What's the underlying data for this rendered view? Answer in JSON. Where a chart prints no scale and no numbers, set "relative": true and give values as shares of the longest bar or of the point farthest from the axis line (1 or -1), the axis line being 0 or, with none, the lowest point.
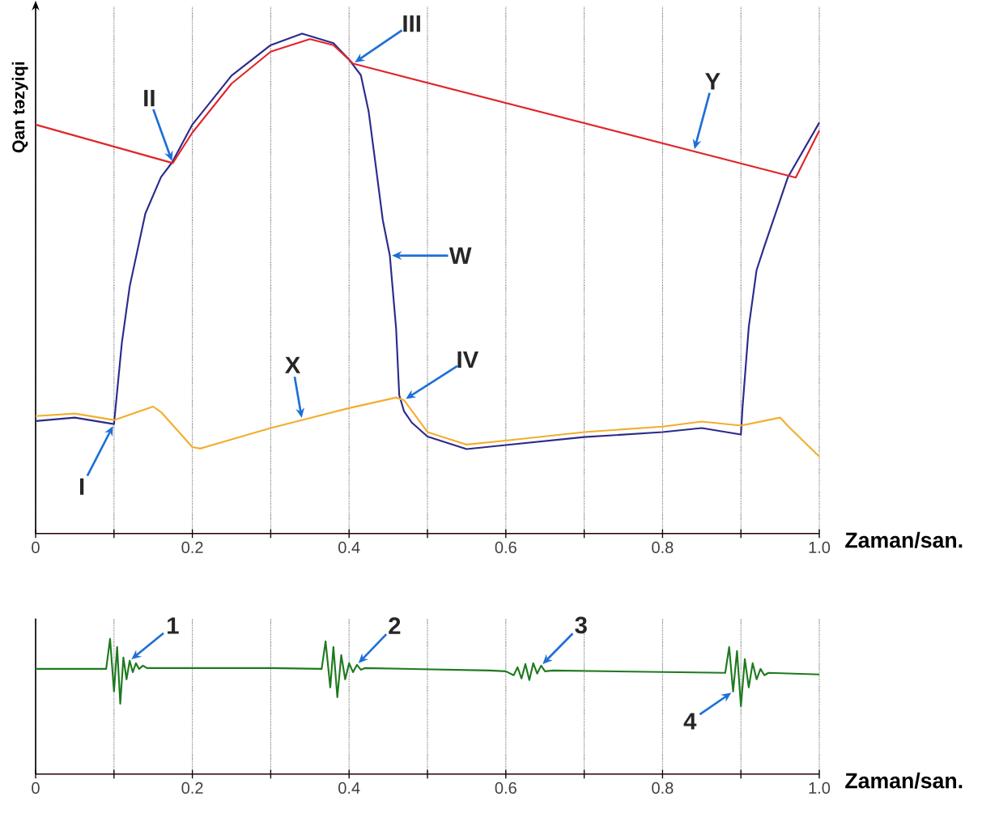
{
  "chart_data": [
    {
      "type": "line",
      "relative": true,
      "xlabel": "Zaman/san.",
      "ylabel": "Qan təzyiqi",
      "xlim": [
        0,
        1
      ],
      "xticks": [
        0,
        {
          "value": 0.1,
          "label": null
        },
        0.2,
        {
          "value": 0.3,
          "label": null
        },
        0.4,
        {
          "value": 0.5,
          "label": null
        },
        0.6,
        {
          "value": 0.7,
          "label": null
        },
        0.8,
        {
          "value": 0.9,
          "label": null
        },
        {
          "value": 1,
          "label": "1.0"
        }
      ],
      "grid": "x",
      "series": [
        {
          "name": "W",
          "color": "#2b2a8c",
          "x": [
            0,
            0.05,
            0.1,
            0.105,
            0.11,
            0.12,
            0.14,
            0.16,
            0.174,
            0.2,
            0.25,
            0.3,
            0.34,
            0.38,
            0.4,
            0.415,
            0.425,
            0.434,
            0.443,
            0.452,
            0.46,
            0.464,
            0.47,
            0.48,
            0.5,
            0.55,
            0.6,
            0.7,
            0.8,
            0.85,
            0.9,
            0.902,
            0.91,
            0.92,
            0.93,
            0.96,
            1.0
          ],
          "values": [
            0.225,
            0.232,
            0.219,
            0.3,
            0.381,
            0.494,
            0.64,
            0.713,
            0.742,
            0.818,
            0.916,
            0.977,
            1.0,
            0.981,
            0.948,
            0.917,
            0.844,
            0.736,
            0.627,
            0.556,
            0.41,
            0.277,
            0.245,
            0.222,
            0.194,
            0.169,
            0.177,
            0.193,
            0.203,
            0.211,
            0.198,
            0.251,
            0.413,
            0.527,
            0.575,
            0.713,
            0.822
          ]
        },
        {
          "name": "Y",
          "color": "#e0262b",
          "x": [
            0,
            0.175,
            0.2,
            0.25,
            0.3,
            0.35,
            0.38,
            0.4,
            0.405,
            0.97,
            1.0
          ],
          "values": [
            0.818,
            0.741,
            0.802,
            0.9,
            0.964,
            0.989,
            0.977,
            0.948,
            0.94,
            0.712,
            0.806
          ]
        },
        {
          "name": "X",
          "color": "#f2ae2e",
          "x": [
            0,
            0.05,
            0.1,
            0.15,
            0.16,
            0.2,
            0.21,
            0.3,
            0.4,
            0.46,
            0.47,
            0.5,
            0.55,
            0.6,
            0.7,
            0.8,
            0.85,
            0.9,
            0.95,
            0.96,
            1.0
          ],
          "values": [
            0.235,
            0.24,
            0.227,
            0.254,
            0.243,
            0.173,
            0.17,
            0.211,
            0.251,
            0.272,
            0.267,
            0.203,
            0.178,
            0.186,
            0.203,
            0.214,
            0.224,
            0.216,
            0.232,
            0.215,
            0.154
          ]
        }
      ],
      "annotations": [
        {
          "text": "I",
          "x": 0.1,
          "y": 0.219
        },
        {
          "text": "II",
          "x": 0.175,
          "y": 0.741
        },
        {
          "text": "III",
          "x": 0.405,
          "y": 0.94
        },
        {
          "text": "IV",
          "x": 0.47,
          "y": 0.267
        }
      ]
    },
    {
      "type": "line",
      "relative": true,
      "xlabel": "Zaman/san.",
      "xlim": [
        0,
        1
      ],
      "xticks": [
        0,
        {
          "value": 0.1,
          "label": null
        },
        0.2,
        {
          "value": 0.3,
          "label": null
        },
        0.4,
        {
          "value": 0.5,
          "label": null
        },
        0.6,
        {
          "value": 0.7,
          "label": null
        },
        0.8,
        {
          "value": 0.9,
          "label": null
        },
        {
          "value": 1,
          "label": "1.0"
        }
      ],
      "grid": "x",
      "series": [
        {
          "color": "#1e7a1e",
          "x": [
            0,
            0.09,
            0.095,
            0.1,
            0.104,
            0.108,
            0.112,
            0.116,
            0.12,
            0.124,
            0.128,
            0.132,
            0.137,
            0.142,
            0.3,
            0.365,
            0.37,
            0.376,
            0.38,
            0.385,
            0.39,
            0.395,
            0.4,
            0.405,
            0.41,
            0.415,
            0.42,
            0.58,
            0.6,
            0.61,
            0.615,
            0.62,
            0.625,
            0.63,
            0.635,
            0.64,
            0.645,
            0.65,
            0.66,
            0.88,
            0.885,
            0.89,
            0.895,
            0.9,
            0.905,
            0.91,
            0.915,
            0.92,
            0.925,
            0.93,
            0.935,
            1.0
          ],
          "values": [
            0.778,
            0.778,
            1.0,
            0.611,
            0.94,
            0.521,
            0.862,
            0.701,
            0.838,
            0.754,
            0.82,
            0.778,
            0.802,
            0.784,
            0.784,
            0.778,
            0.982,
            0.641,
            0.94,
            0.569,
            0.88,
            0.701,
            0.82,
            0.754,
            0.808,
            0.772,
            0.784,
            0.766,
            0.76,
            0.731,
            0.79,
            0.707,
            0.814,
            0.695,
            0.82,
            0.743,
            0.802,
            0.76,
            0.766,
            0.749,
            0.94,
            0.611,
            0.91,
            0.503,
            0.85,
            0.641,
            0.82,
            0.701,
            0.778,
            0.731,
            0.749,
            0.737
          ]
        }
      ],
      "annotations": [
        {
          "text": "1",
          "x": 0.12,
          "y": 0.838
        },
        {
          "text": "2",
          "x": 0.41,
          "y": 0.808
        },
        {
          "text": "3",
          "x": 0.645,
          "y": 0.802
        },
        {
          "text": "4",
          "x": 0.89,
          "y": 0.611
        }
      ]
    }
  ]
}
